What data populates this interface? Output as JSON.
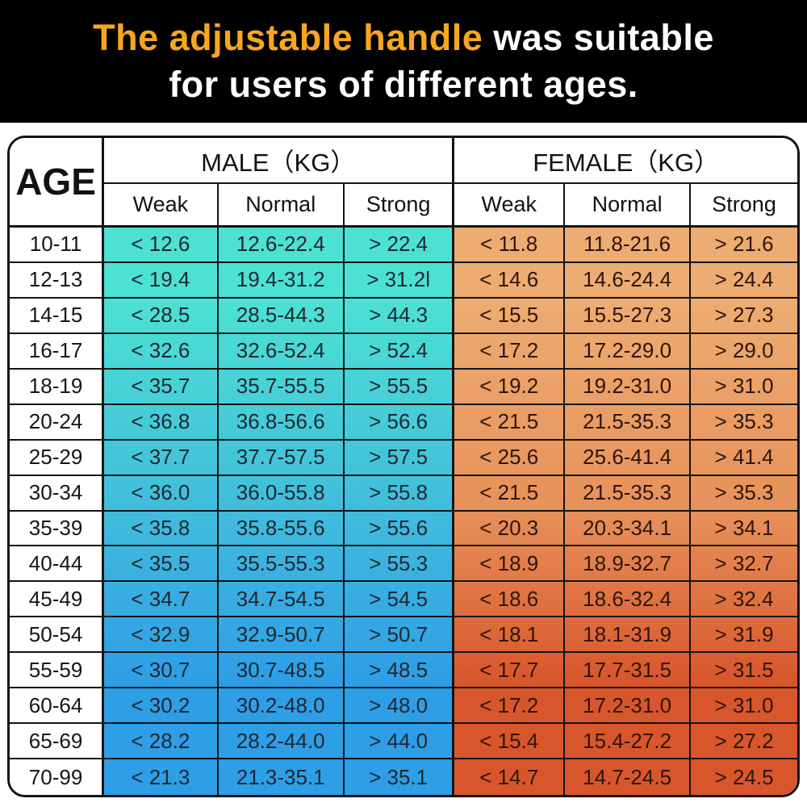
{
  "banner": {
    "line1_highlight": "The adjustable handle",
    "line1_rest": " was suitable",
    "line2": "for users of different ages.",
    "bg_color": "#000000",
    "highlight_color": "#F6A71F",
    "text_color": "#FFFFFF"
  },
  "table": {
    "age_header": "AGE",
    "male_header": "MALE（KG）",
    "female_header": "FEMALE（KG）",
    "sub_headers": [
      "Weak",
      "Normal",
      "Strong"
    ],
    "border_color": "#141414",
    "header_bg": "#FFFFFF",
    "male_gradient": [
      "#4CE1D3",
      "#41BCDC",
      "#2E9EE7"
    ],
    "female_gradient": [
      "#EDAC71",
      "#E7915A",
      "#D8562B"
    ]
  },
  "chart_data": {
    "type": "table",
    "title": "The adjustable handle was suitable for users of different ages.",
    "columns": [
      "AGE",
      "MALE Weak (KG)",
      "MALE Normal (KG)",
      "MALE Strong (KG)",
      "FEMALE Weak (KG)",
      "FEMALE Normal (KG)",
      "FEMALE Strong (KG)"
    ],
    "rows": [
      [
        "10-11",
        "< 12.6",
        "12.6-22.4",
        "> 22.4",
        "< 11.8",
        "11.8-21.6",
        "> 21.6"
      ],
      [
        "12-13",
        "< 19.4",
        "19.4-31.2",
        "> 31.2l",
        "< 14.6",
        "14.6-24.4",
        "> 24.4"
      ],
      [
        "14-15",
        "< 28.5",
        "28.5-44.3",
        "> 44.3",
        "< 15.5",
        "15.5-27.3",
        "> 27.3"
      ],
      [
        "16-17",
        "< 32.6",
        "32.6-52.4",
        "> 52.4",
        "< 17.2",
        "17.2-29.0",
        "> 29.0"
      ],
      [
        "18-19",
        "< 35.7",
        "35.7-55.5",
        "> 55.5",
        "< 19.2",
        "19.2-31.0",
        "> 31.0"
      ],
      [
        "20-24",
        "< 36.8",
        "36.8-56.6",
        "> 56.6",
        "< 21.5",
        "21.5-35.3",
        "> 35.3"
      ],
      [
        "25-29",
        "< 37.7",
        "37.7-57.5",
        "> 57.5",
        "< 25.6",
        "25.6-41.4",
        "> 41.4"
      ],
      [
        "30-34",
        "< 36.0",
        "36.0-55.8",
        "> 55.8",
        "< 21.5",
        "21.5-35.3",
        "> 35.3"
      ],
      [
        "35-39",
        "< 35.8",
        "35.8-55.6",
        "> 55.6",
        "< 20.3",
        "20.3-34.1",
        "> 34.1"
      ],
      [
        "40-44",
        "< 35.5",
        "35.5-55.3",
        "> 55.3",
        "< 18.9",
        "18.9-32.7",
        "> 32.7"
      ],
      [
        "45-49",
        "< 34.7",
        "34.7-54.5",
        "> 54.5",
        "< 18.6",
        "18.6-32.4",
        "> 32.4"
      ],
      [
        "50-54",
        "< 32.9",
        "32.9-50.7",
        "> 50.7",
        "< 18.1",
        "18.1-31.9",
        "> 31.9"
      ],
      [
        "55-59",
        "< 30.7",
        "30.7-48.5",
        "> 48.5",
        "< 17.7",
        "17.7-31.5",
        "> 31.5"
      ],
      [
        "60-64",
        "< 30.2",
        "30.2-48.0",
        "> 48.0",
        "< 17.2",
        "17.2-31.0",
        "> 31.0"
      ],
      [
        "65-69",
        "< 28.2",
        "28.2-44.0",
        "> 44.0",
        "< 15.4",
        "15.4-27.2",
        "> 27.2"
      ],
      [
        "70-99",
        "< 21.3",
        "21.3-35.1",
        "> 35.1",
        "< 14.7",
        "14.7-24.5",
        "> 24.5"
      ]
    ]
  }
}
